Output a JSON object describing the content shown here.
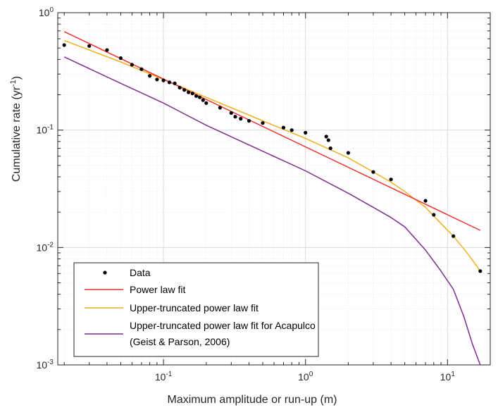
{
  "chart_data": {
    "type": "scatter",
    "xlabel": "Maximum amplitude or run-up (m)",
    "ylabel_main": "Cumulative rate (yr",
    "ylabel_sup": "-1",
    "ylabel_close": ")",
    "xscale": "log",
    "yscale": "log",
    "xlim": [
      0.018,
      20
    ],
    "ylim": [
      0.001,
      1
    ],
    "grid": true,
    "minor_grid": true,
    "legend_placement": "bottom-left",
    "x_ticks": [
      {
        "value": 0.1,
        "base": "10",
        "exp": "-1"
      },
      {
        "value": 1,
        "base": "10",
        "exp": "0"
      },
      {
        "value": 10,
        "base": "10",
        "exp": "1"
      }
    ],
    "y_ticks": [
      {
        "value": 0.001,
        "base": "10",
        "exp": "-3"
      },
      {
        "value": 0.01,
        "base": "10",
        "exp": "-2"
      },
      {
        "value": 0.1,
        "base": "10",
        "exp": "-1"
      },
      {
        "value": 1,
        "base": "10",
        "exp": "0"
      }
    ],
    "series": [
      {
        "name": "Data",
        "kind": "points",
        "color": "#000000",
        "x": [
          0.02,
          0.03,
          0.04,
          0.05,
          0.06,
          0.07,
          0.08,
          0.09,
          0.1,
          0.11,
          0.12,
          0.13,
          0.14,
          0.15,
          0.16,
          0.17,
          0.18,
          0.19,
          0.2,
          0.25,
          0.3,
          0.32,
          0.35,
          0.4,
          0.5,
          0.7,
          0.8,
          1.0,
          1.4,
          1.45,
          1.5,
          2.0,
          3.0,
          4.0,
          7.0,
          8.0,
          11.0,
          17.0
        ],
        "y": [
          0.53,
          0.52,
          0.48,
          0.41,
          0.36,
          0.33,
          0.29,
          0.27,
          0.265,
          0.255,
          0.25,
          0.23,
          0.22,
          0.21,
          0.205,
          0.195,
          0.19,
          0.18,
          0.17,
          0.155,
          0.14,
          0.13,
          0.125,
          0.12,
          0.115,
          0.105,
          0.1,
          0.095,
          0.088,
          0.082,
          0.07,
          0.064,
          0.044,
          0.038,
          0.025,
          0.019,
          0.0125,
          0.0063
        ]
      },
      {
        "name": "Power law fit",
        "kind": "line",
        "color": "#ee3333",
        "x": [
          0.02,
          17.0
        ],
        "y": [
          0.69,
          0.014
        ]
      },
      {
        "name": "Upper-truncated power law fit",
        "kind": "line",
        "color": "#edb120",
        "x": [
          0.02,
          0.05,
          0.1,
          0.2,
          0.5,
          1.0,
          2.0,
          3.0,
          4.0,
          5.0,
          7.0,
          9.0,
          11.0,
          13.0,
          15.0,
          17.0
        ],
        "y": [
          0.58,
          0.38,
          0.27,
          0.19,
          0.12,
          0.085,
          0.058,
          0.044,
          0.036,
          0.03,
          0.022,
          0.016,
          0.0125,
          0.0098,
          0.0078,
          0.0063
        ]
      },
      {
        "name": "Upper-truncated power law fit for Acapulco",
        "name_line2": "(Geist & Parson, 2006)",
        "kind": "line",
        "color": "#7e2f8e",
        "x": [
          0.02,
          0.05,
          0.1,
          0.2,
          0.5,
          1.0,
          2.0,
          3.0,
          4.0,
          5.0,
          7.0,
          9.0,
          11.0,
          13.0,
          15.0,
          17.0
        ],
        "y": [
          0.42,
          0.25,
          0.17,
          0.11,
          0.066,
          0.045,
          0.029,
          0.022,
          0.018,
          0.015,
          0.0095,
          0.0063,
          0.0044,
          0.0026,
          0.0015,
          0.001
        ]
      }
    ]
  }
}
